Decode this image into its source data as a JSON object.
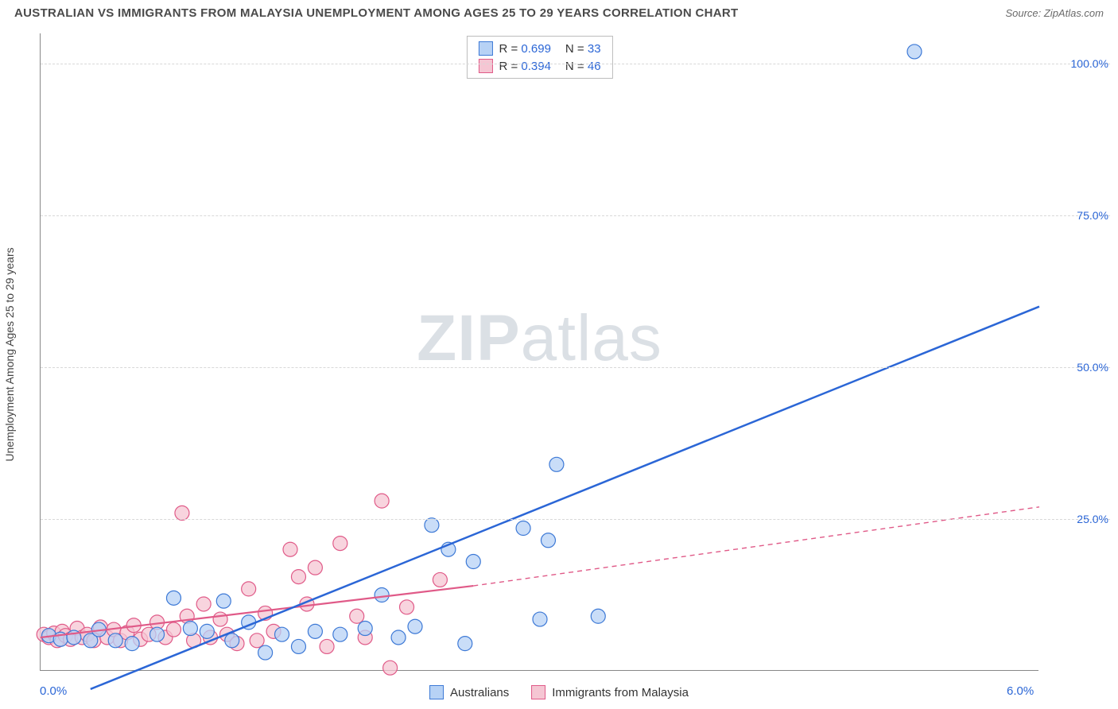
{
  "header": {
    "title": "AUSTRALIAN VS IMMIGRANTS FROM MALAYSIA UNEMPLOYMENT AMONG AGES 25 TO 29 YEARS CORRELATION CHART",
    "source_prefix": "Source: ",
    "source_name": "ZipAtlas.com"
  },
  "watermark": {
    "part1": "ZIP",
    "part2": "atlas"
  },
  "chart": {
    "type": "scatter",
    "y_axis_title": "Unemployment Among Ages 25 to 29 years",
    "xlim": [
      0,
      6
    ],
    "ylim": [
      0,
      105
    ],
    "x_ticks": [
      {
        "value": 0,
        "label": "0.0%"
      },
      {
        "value": 6,
        "label": "6.0%"
      }
    ],
    "y_ticks": [
      {
        "value": 25,
        "label": "25.0%"
      },
      {
        "value": 50,
        "label": "50.0%"
      },
      {
        "value": 75,
        "label": "75.0%"
      },
      {
        "value": 100,
        "label": "100.0%"
      }
    ],
    "grid_color": "#d8d8d8",
    "axis_color": "#888888",
    "background_color": "#ffffff",
    "series": [
      {
        "name": "Australians",
        "label": "Australians",
        "marker_color": "#b7d2f5",
        "marker_border": "#3d79d6",
        "line_color": "#2b66d6",
        "line_style": "solid",
        "line_width": 2.5,
        "marker_radius": 9,
        "R": "0.699",
        "N": "33",
        "trend": {
          "x1": 0.3,
          "y1": -3,
          "x2": 6.0,
          "y2": 60
        },
        "points": [
          [
            0.05,
            5.8
          ],
          [
            0.12,
            5.2
          ],
          [
            0.2,
            5.5
          ],
          [
            0.3,
            5.0
          ],
          [
            0.35,
            6.8
          ],
          [
            0.45,
            5.0
          ],
          [
            0.55,
            4.5
          ],
          [
            0.7,
            6.0
          ],
          [
            0.8,
            12.0
          ],
          [
            0.9,
            7.0
          ],
          [
            1.0,
            6.5
          ],
          [
            1.1,
            11.5
          ],
          [
            1.15,
            5.0
          ],
          [
            1.25,
            8.0
          ],
          [
            1.35,
            3.0
          ],
          [
            1.45,
            6.0
          ],
          [
            1.55,
            4.0
          ],
          [
            1.65,
            6.5
          ],
          [
            1.8,
            6.0
          ],
          [
            1.95,
            7.0
          ],
          [
            2.05,
            12.5
          ],
          [
            2.15,
            5.5
          ],
          [
            2.25,
            7.3
          ],
          [
            2.35,
            24.0
          ],
          [
            2.45,
            20.0
          ],
          [
            2.55,
            4.5
          ],
          [
            2.6,
            18.0
          ],
          [
            2.9,
            23.5
          ],
          [
            3.0,
            8.5
          ],
          [
            3.05,
            21.5
          ],
          [
            3.1,
            34.0
          ],
          [
            3.35,
            9.0
          ],
          [
            5.25,
            102.0
          ]
        ]
      },
      {
        "name": "Immigrants from Malaysia",
        "label": "Immigrants from Malaysia",
        "marker_color": "#f5c6d3",
        "marker_border": "#e05a88",
        "line_color": "#e05a88",
        "line_style": "solid",
        "line_width": 2.2,
        "marker_radius": 9,
        "R": "0.394",
        "N": "46",
        "trend_solid": {
          "x1": 0.0,
          "y1": 5.5,
          "x2": 2.6,
          "y2": 14.0
        },
        "trend_dash": {
          "x1": 2.6,
          "y1": 14.0,
          "x2": 6.0,
          "y2": 27.0
        },
        "dash_pattern": "6 5",
        "points": [
          [
            0.02,
            6.0
          ],
          [
            0.05,
            5.5
          ],
          [
            0.08,
            6.2
          ],
          [
            0.1,
            5.0
          ],
          [
            0.13,
            6.5
          ],
          [
            0.15,
            5.8
          ],
          [
            0.18,
            5.2
          ],
          [
            0.22,
            7.0
          ],
          [
            0.25,
            5.5
          ],
          [
            0.28,
            6.0
          ],
          [
            0.32,
            5.0
          ],
          [
            0.36,
            7.2
          ],
          [
            0.4,
            5.5
          ],
          [
            0.44,
            6.8
          ],
          [
            0.48,
            5.0
          ],
          [
            0.52,
            6.3
          ],
          [
            0.56,
            7.5
          ],
          [
            0.6,
            5.2
          ],
          [
            0.65,
            6.0
          ],
          [
            0.7,
            8.0
          ],
          [
            0.75,
            5.5
          ],
          [
            0.8,
            6.8
          ],
          [
            0.85,
            26.0
          ],
          [
            0.88,
            9.0
          ],
          [
            0.92,
            5.0
          ],
          [
            0.98,
            11.0
          ],
          [
            1.02,
            5.5
          ],
          [
            1.08,
            8.5
          ],
          [
            1.12,
            6.0
          ],
          [
            1.18,
            4.5
          ],
          [
            1.25,
            13.5
          ],
          [
            1.3,
            5.0
          ],
          [
            1.35,
            9.5
          ],
          [
            1.4,
            6.5
          ],
          [
            1.5,
            20.0
          ],
          [
            1.55,
            15.5
          ],
          [
            1.6,
            11.0
          ],
          [
            1.65,
            17.0
          ],
          [
            1.72,
            4.0
          ],
          [
            1.8,
            21.0
          ],
          [
            1.9,
            9.0
          ],
          [
            1.95,
            5.5
          ],
          [
            2.05,
            28.0
          ],
          [
            2.1,
            0.5
          ],
          [
            2.2,
            10.5
          ],
          [
            2.4,
            15.0
          ]
        ]
      }
    ],
    "stat_label_color": "#2b66d6",
    "stat_text_color": "#333333",
    "tick_label_color": "#2b66d6"
  },
  "legend_top": {
    "R_label": "R =",
    "N_label": "N ="
  }
}
